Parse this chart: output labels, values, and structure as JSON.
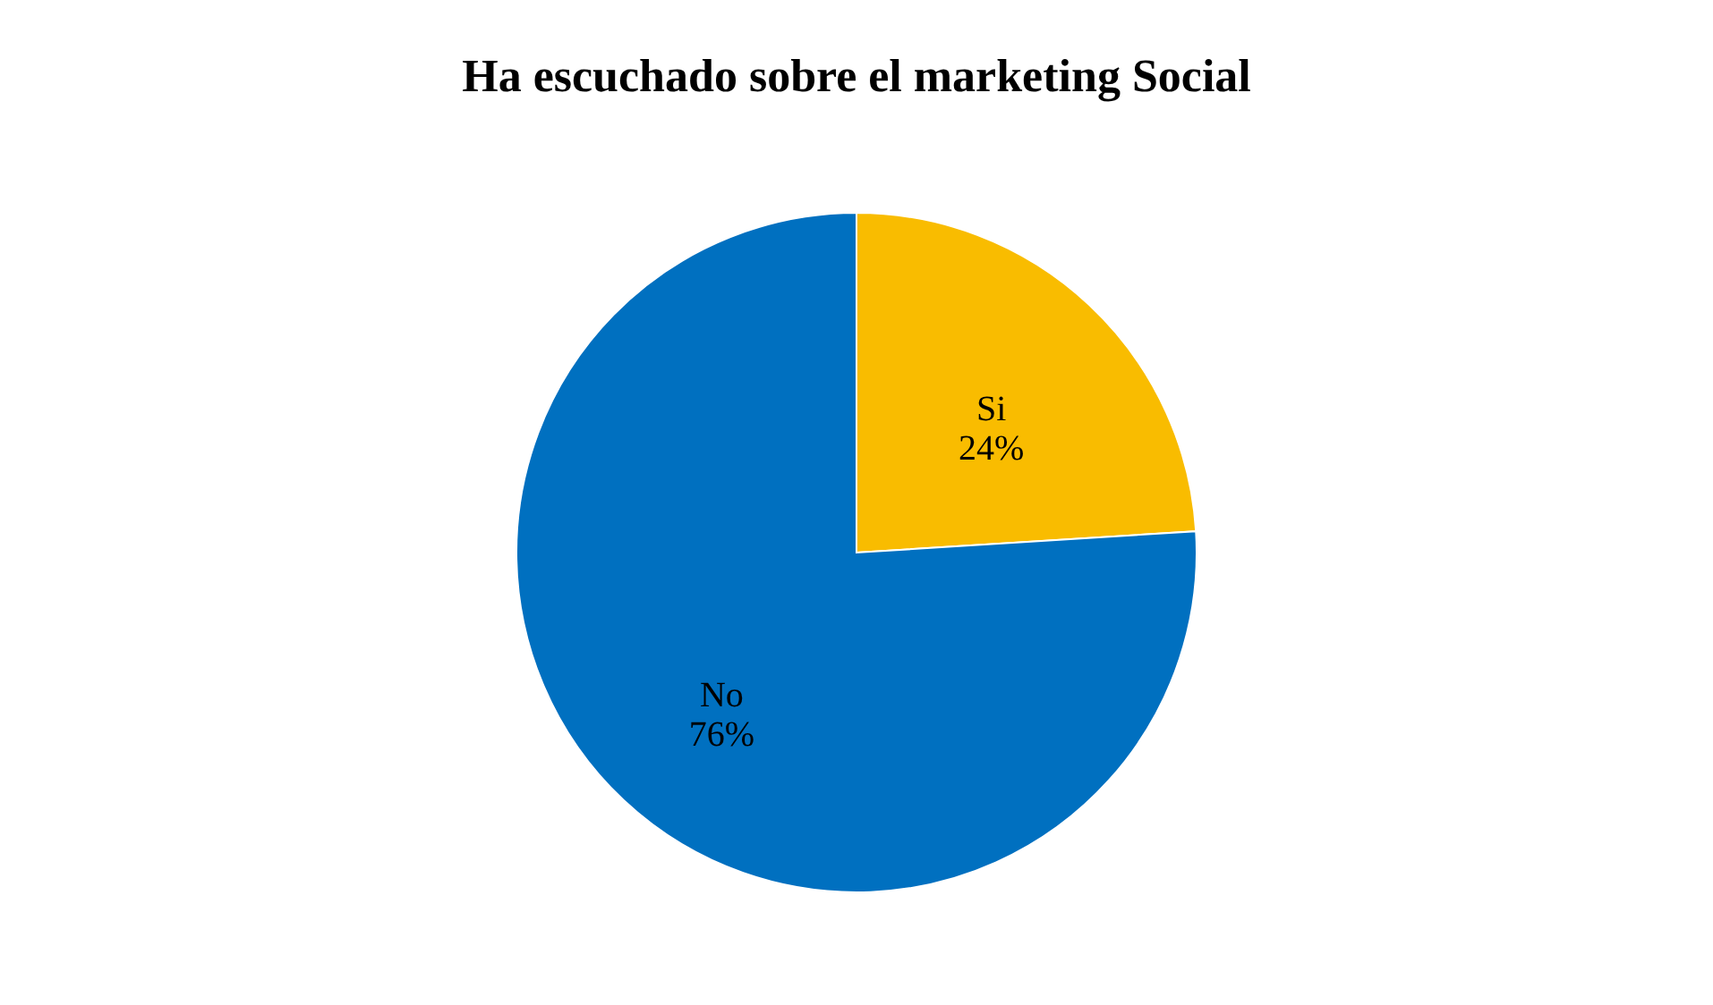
{
  "chart_data": {
    "type": "pie",
    "title": "Ha escuchado sobre el marketing Social",
    "categories": [
      "Si",
      "No"
    ],
    "values": [
      24,
      76
    ],
    "colors": [
      "#f9bc00",
      "#0070c0"
    ],
    "value_labels": [
      "24%",
      "76%"
    ],
    "legend": false
  }
}
